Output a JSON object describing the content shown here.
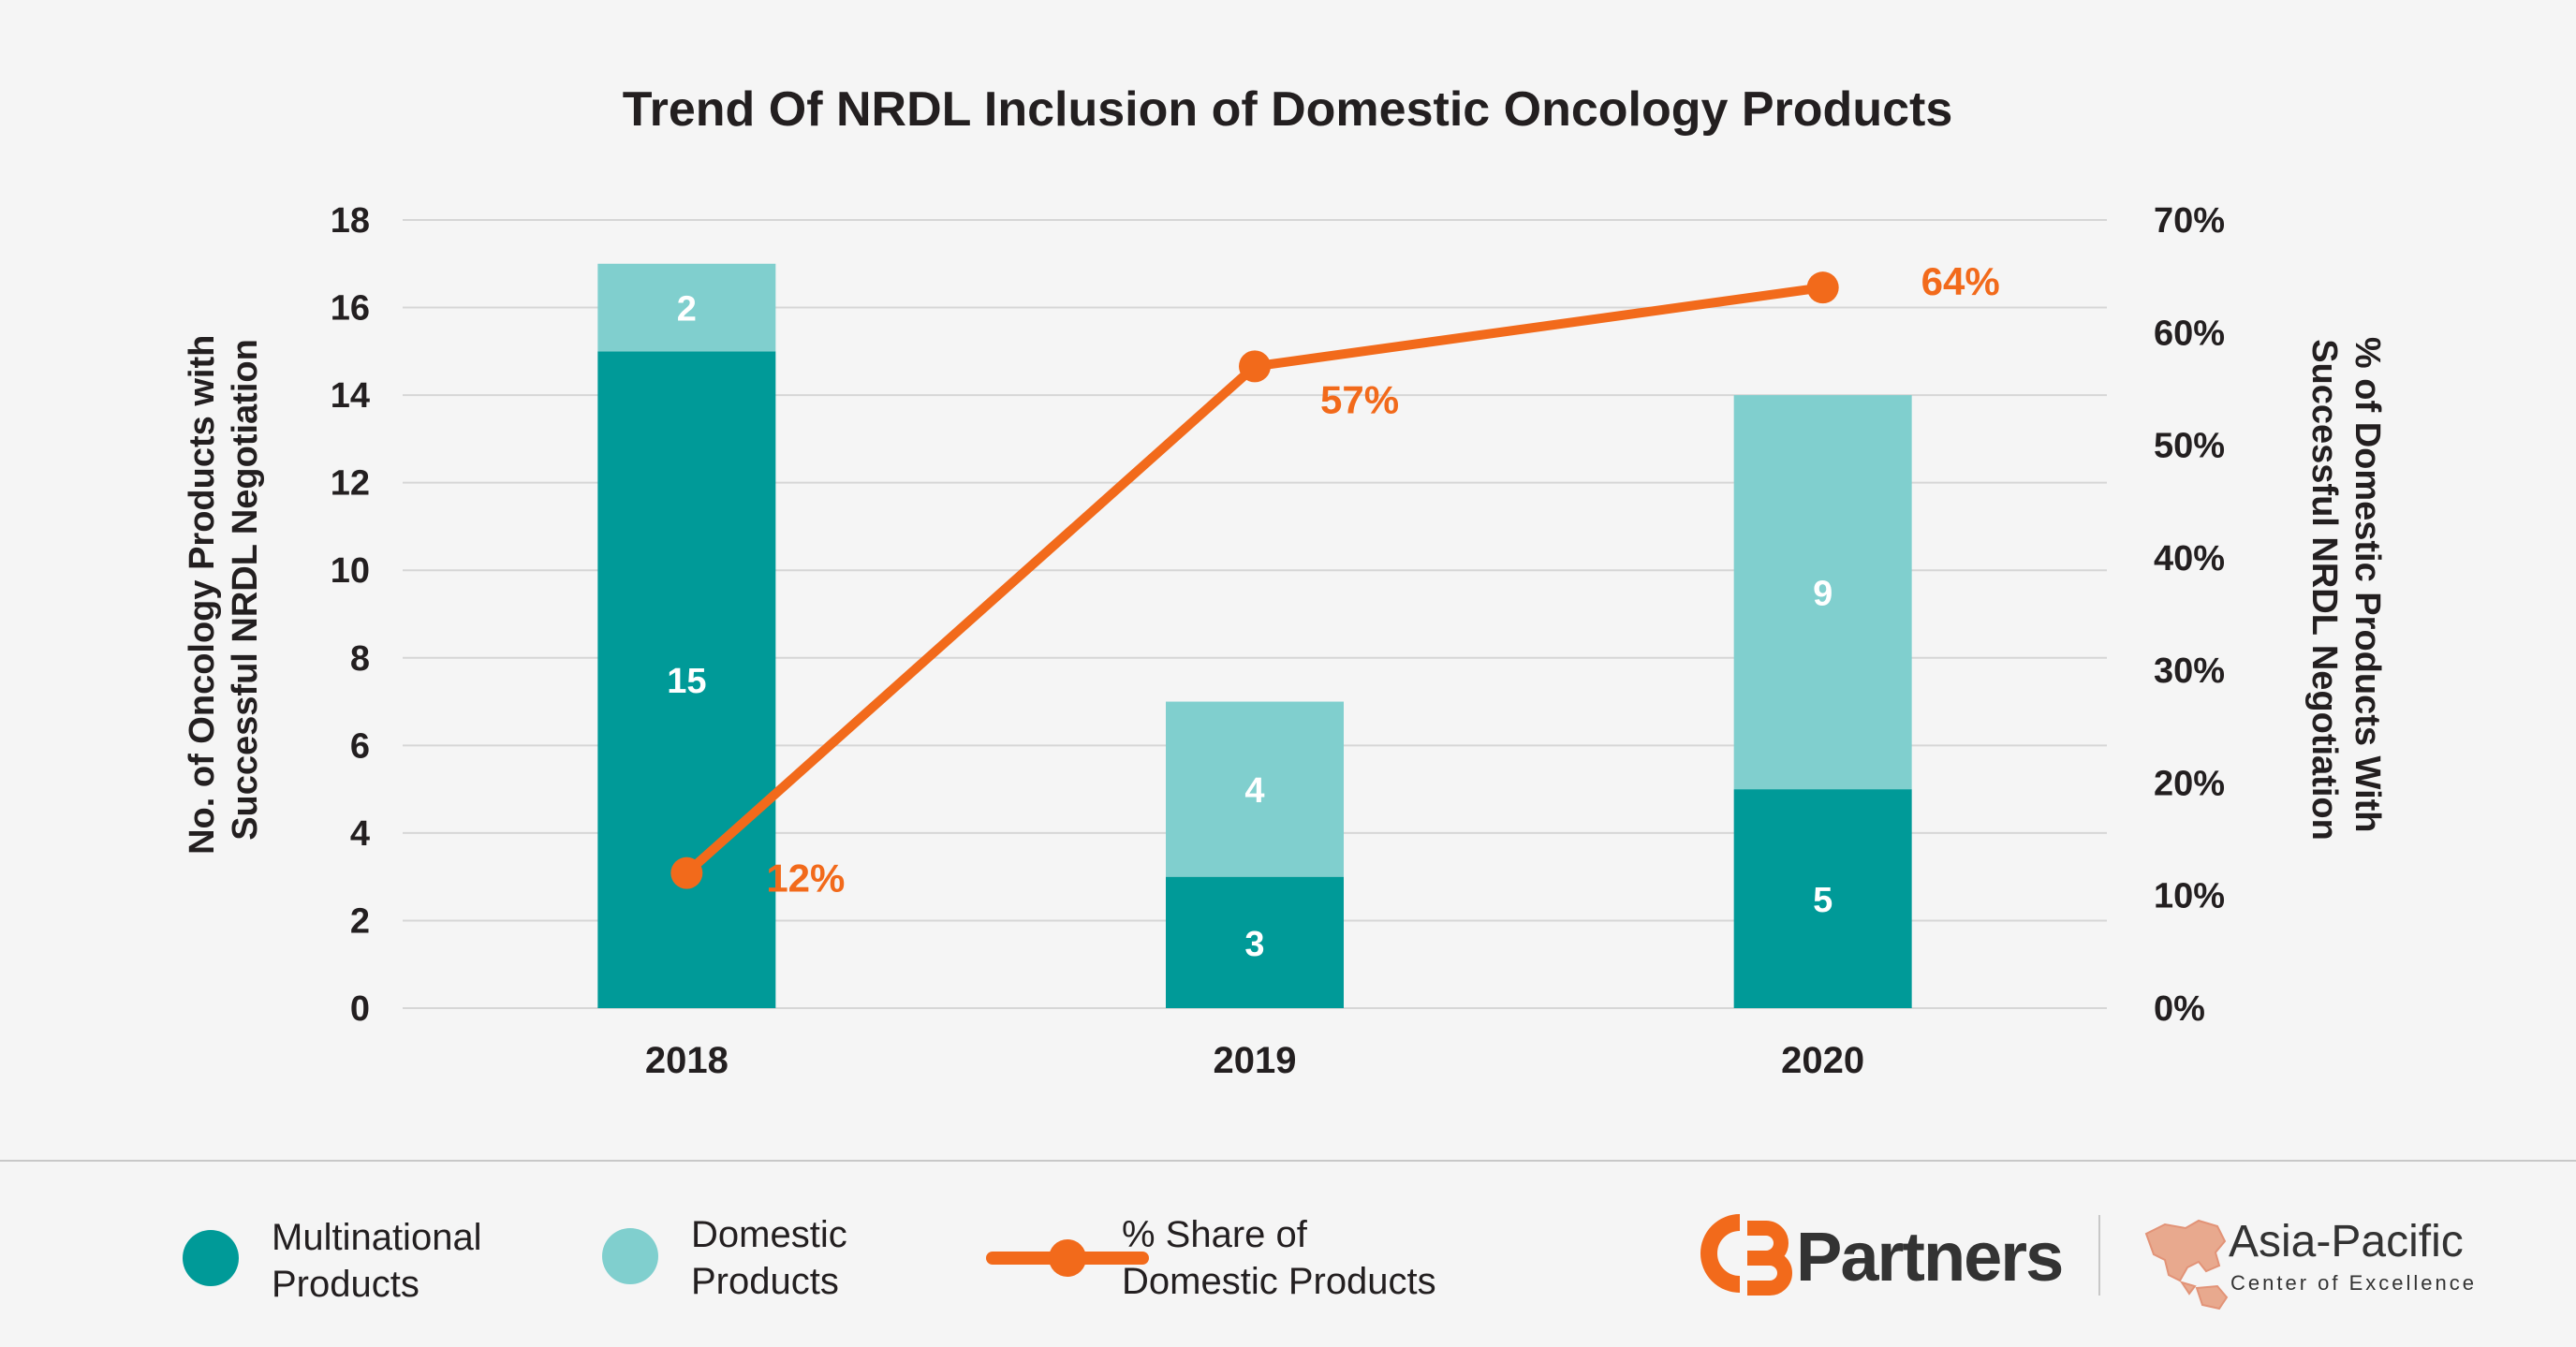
{
  "chart_data": {
    "type": "bar",
    "stacked": true,
    "title": "Trend Of NRDL Inclusion of Domestic Oncology Products",
    "categories": [
      "2018",
      "2019",
      "2020"
    ],
    "series": [
      {
        "name": "Multinational Products",
        "values": [
          15,
          3,
          5
        ],
        "color": "#009a98"
      },
      {
        "name": "Domestic Products",
        "values": [
          2,
          4,
          9
        ],
        "color": "#80cfce"
      }
    ],
    "line_series": {
      "name": "% Share of Domestic Products",
      "values": [
        12,
        57,
        64
      ],
      "labels": [
        "12%",
        "57%",
        "64%"
      ],
      "color": "#f26a1b",
      "axis": "right"
    },
    "ylabel": "No. of Oncology Products with Successful NRDL Negotiation",
    "ylabel_lines": [
      "No. of Oncology Products with",
      "Successful NRDL Negotiation"
    ],
    "ylim": [
      0,
      18
    ],
    "yticks": [
      "0",
      "2",
      "4",
      "6",
      "8",
      "10",
      "12",
      "14",
      "16",
      "18"
    ],
    "y2label": "% of Domestic Products With Successful NRDL Negotiation",
    "y2label_lines": [
      "% of Domestic Products With",
      "Successful NRDL Negotiation"
    ],
    "y2lim": [
      0,
      70
    ],
    "y2ticks": [
      "0%",
      "10%",
      "20%",
      "30%",
      "40%",
      "50%",
      "60%",
      "70%"
    ],
    "grid": true,
    "legend_position": "bottom"
  },
  "legend": {
    "multinational_lines": [
      "Multinational",
      "Products"
    ],
    "domestic_lines": [
      "Domestic",
      "Products"
    ],
    "share_lines": [
      "% Share of",
      "Domestic Products"
    ]
  },
  "brand": {
    "logo_text": "CBPartners",
    "region_title": "Asia-Pacific",
    "region_sub": "Center of Excellence",
    "line_color": "#f26a1b",
    "text_color": "#333333"
  }
}
